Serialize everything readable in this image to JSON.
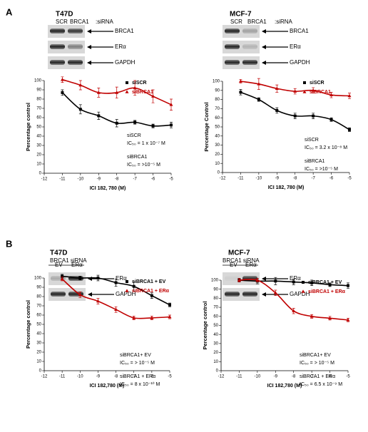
{
  "figure": {
    "panel_labels": [
      "A",
      "B"
    ],
    "blots": [
      {
        "title": "T47D",
        "lanes": [
          "SCR",
          "BRCA1"
        ],
        "lane_note": ":siRNA",
        "rows": [
          "BRCA1",
          "ERα",
          "GAPDH"
        ]
      },
      {
        "title": "MCF-7",
        "lanes": [
          "SCR",
          "BRCA1"
        ],
        "lane_note": ":siRNA",
        "rows": [
          "BRCA1",
          "ERα",
          "GAPDH"
        ]
      },
      {
        "title": "T47D",
        "group": "BRCA1 siRNA",
        "lanes": [
          "EV",
          "ERα"
        ],
        "rows": [
          "ERα",
          "GAPDH"
        ]
      },
      {
        "title": "MCF-7",
        "group": "BRCA1 siRNA",
        "lanes": [
          "EV",
          "ERα"
        ],
        "rows": [
          "ERα",
          "GAPDH"
        ]
      }
    ]
  },
  "chart_data": [
    {
      "type": "dose-response",
      "xlabel": "ICI 182, 780 (M)",
      "ylabel": "Percentage control",
      "x": [
        -11,
        -10,
        -9,
        -8,
        -7,
        -6,
        -5
      ],
      "xlim": [
        -12,
        -5
      ],
      "xticks": [
        -12,
        -11,
        -10,
        -9,
        -8,
        -7,
        -6,
        -5
      ],
      "ylim": [
        0,
        100
      ],
      "yticks": [
        0,
        10,
        20,
        30,
        40,
        50,
        60,
        70,
        80,
        90,
        100
      ],
      "series": [
        {
          "name": "siSCR",
          "color": "#000000",
          "marker": "square",
          "values": [
            87,
            69,
            62,
            54,
            55,
            51,
            52
          ],
          "errors": [
            3,
            5,
            4,
            4,
            2,
            2,
            3
          ]
        },
        {
          "name": "siBRCA1",
          "color": "#c00000",
          "marker": "triangle",
          "values": [
            101,
            95,
            87,
            87,
            92,
            83,
            74
          ],
          "errors": [
            3,
            5,
            5,
            6,
            8,
            7,
            6
          ]
        }
      ],
      "annotations": [
        "siSCR",
        "IC₅₀ = 1 x 10⁻⁷ M",
        "siBRCA1",
        "IC₅₀ = >10⁻⁵ M"
      ]
    },
    {
      "type": "dose-response",
      "xlabel": "ICI 182, 780 (M)",
      "ylabel": "Percentage Control",
      "x": [
        -11,
        -10,
        -9,
        -8,
        -7,
        -6,
        -5
      ],
      "xlim": [
        -12,
        -5
      ],
      "xticks": [
        -12,
        -11,
        -10,
        -9,
        -8,
        -7,
        -6,
        -5
      ],
      "ylim": [
        0,
        100
      ],
      "yticks": [
        0,
        10,
        20,
        30,
        40,
        50,
        60,
        70,
        80,
        90,
        100
      ],
      "series": [
        {
          "name": "siSCR",
          "color": "#000000",
          "marker": "square",
          "values": [
            88,
            80,
            68,
            62,
            62,
            58,
            47
          ],
          "errors": [
            3,
            2,
            3,
            3,
            3,
            2,
            2
          ]
        },
        {
          "name": "siBRCA1",
          "color": "#c00000",
          "marker": "triangle",
          "values": [
            100,
            97,
            92,
            89,
            90,
            85,
            84
          ],
          "errors": [
            2,
            6,
            4,
            3,
            3,
            3,
            3
          ]
        }
      ],
      "annotations": [
        "siSCR",
        "IC₅₀ = 3.2 x 10⁻⁸ M",
        "siBRCA1",
        "IC₅₀ = >10⁻⁵ M"
      ]
    },
    {
      "type": "dose-response",
      "xlabel": "ICI 182,780 (M)",
      "ylabel": "Percentage control",
      "x": [
        -11,
        -10,
        -9,
        -8,
        -7,
        -6,
        -5
      ],
      "xlim": [
        -12,
        -5
      ],
      "xticks": [
        -12,
        -11,
        -10,
        -9,
        -8,
        -7,
        -6,
        -5
      ],
      "ylim": [
        0,
        100
      ],
      "yticks": [
        0,
        10,
        20,
        30,
        40,
        50,
        60,
        70,
        80,
        90,
        100
      ],
      "series": [
        {
          "name": "siBRCA1 + EV",
          "color": "#000000",
          "marker": "square",
          "values": [
            102,
            100,
            100,
            95,
            91,
            81,
            71
          ],
          "errors": [
            2,
            2,
            3,
            4,
            5,
            3,
            2
          ]
        },
        {
          "name": "siBRCA1 + ERα",
          "color": "#c00000",
          "marker": "triangle",
          "values": [
            99,
            82,
            75,
            66,
            57,
            57,
            58
          ],
          "errors": [
            2,
            3,
            3,
            3,
            2,
            2,
            2
          ]
        }
      ],
      "annotations": [
        "siBRCA1+ EV",
        "IC₅₀ = > 10⁻⁵ M",
        "siBRCA1 + ERα",
        "IC₅₀ = 8 x 10⁻¹⁰ M"
      ]
    },
    {
      "type": "dose-response",
      "xlabel": "ICI 182,780 (M)",
      "ylabel": "Percentage control",
      "x": [
        -11,
        -10,
        -9,
        -8,
        -7,
        -6,
        -5
      ],
      "xlim": [
        -12,
        -5
      ],
      "xticks": [
        -12,
        -11,
        -10,
        -9,
        -8,
        -7,
        -6,
        -5
      ],
      "ylim": [
        0,
        100
      ],
      "yticks": [
        0,
        10,
        20,
        30,
        40,
        50,
        60,
        70,
        80,
        90,
        100
      ],
      "series": [
        {
          "name": "siBRCA1 + EV",
          "color": "#000000",
          "marker": "square",
          "values": [
            100,
            99,
            99,
            98,
            97,
            95,
            94
          ],
          "errors": [
            2,
            3,
            4,
            3,
            3,
            2,
            3
          ]
        },
        {
          "name": "siBRCA1 + ERα",
          "color": "#c00000",
          "marker": "triangle",
          "values": [
            100,
            100,
            86,
            66,
            60,
            58,
            56
          ],
          "errors": [
            2,
            2,
            3,
            3,
            2,
            2,
            2
          ]
        }
      ],
      "annotations": [
        "siBRCA1+ EV",
        "IC₅₀ = > 10⁻⁵ M",
        "siBRCA1 + ERα",
        "IC₅₀ = 6.5 x 10⁻⁹ M"
      ]
    }
  ]
}
